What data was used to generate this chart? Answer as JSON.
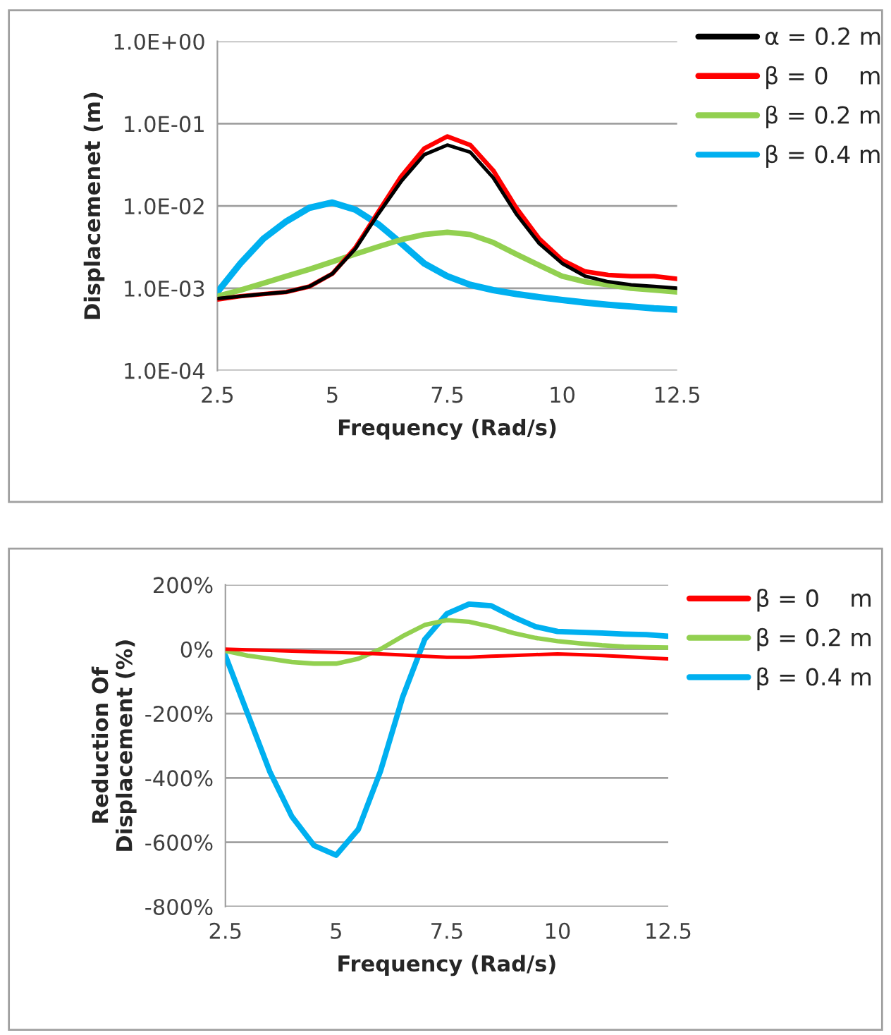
{
  "chart_data": [
    {
      "type": "line",
      "xlabel": "Frequency (Rad/s)",
      "ylabel": "Displacemenet (m)",
      "log": "y",
      "grid": "y",
      "legend": "right",
      "marker": "none",
      "line_style": "solid",
      "x": [
        2.5,
        3,
        3.5,
        4,
        4.5,
        5,
        5.5,
        6,
        6.5,
        7,
        7.5,
        8,
        8.5,
        9,
        9.5,
        10,
        10.5,
        11,
        11.5,
        12,
        12.5
      ],
      "xlim": [
        2.5,
        12.5
      ],
      "xticks": [
        2.5,
        5,
        7.5,
        10,
        12.5
      ],
      "ylim": [
        0.0001,
        1
      ],
      "yticks": [
        {
          "value": 0.0001,
          "label": "1.0E-04"
        },
        {
          "value": 0.001,
          "label": "1.0E-03"
        },
        {
          "value": 0.01,
          "label": "1.0E-02"
        },
        {
          "value": 0.1,
          "label": "1.0E-01"
        },
        {
          "value": 1,
          "label": "1.0E+00"
        }
      ],
      "series": [
        {
          "name": "α = 0.2 m",
          "color": "#000000",
          "values": [
            0.00075,
            0.0008,
            0.00085,
            0.0009,
            0.00105,
            0.0015,
            0.003,
            0.008,
            0.02,
            0.042,
            0.055,
            0.045,
            0.022,
            0.008,
            0.0035,
            0.002,
            0.0014,
            0.0012,
            0.0011,
            0.00105,
            0.001
          ]
        },
        {
          "name": "β = 0    m",
          "color": "#ff0000",
          "values": [
            0.00073,
            0.0008,
            0.00085,
            0.0009,
            0.00105,
            0.0015,
            0.0031,
            0.0085,
            0.023,
            0.05,
            0.07,
            0.055,
            0.027,
            0.0095,
            0.004,
            0.0022,
            0.0016,
            0.00145,
            0.0014,
            0.0014,
            0.0013
          ]
        },
        {
          "name": "β = 0.2 m",
          "color": "#92d050",
          "values": [
            0.0008,
            0.00095,
            0.00115,
            0.0014,
            0.0017,
            0.0021,
            0.0026,
            0.0032,
            0.0039,
            0.0045,
            0.0048,
            0.0045,
            0.0036,
            0.0026,
            0.0019,
            0.0014,
            0.0012,
            0.0011,
            0.001,
            0.00095,
            0.0009
          ]
        },
        {
          "name": "β = 0.4 m",
          "color": "#00b0f0",
          "values": [
            0.0009,
            0.002,
            0.004,
            0.0065,
            0.0095,
            0.011,
            0.009,
            0.006,
            0.0035,
            0.002,
            0.0014,
            0.0011,
            0.00095,
            0.00085,
            0.00078,
            0.00072,
            0.00067,
            0.00063,
            0.0006,
            0.00057,
            0.00055
          ]
        }
      ]
    },
    {
      "type": "line",
      "xlabel": "Frequency (Rad/s)",
      "ylabel": "Reduction Of\nDisplacement (%)",
      "grid": "y",
      "legend": "right",
      "marker": "none",
      "line_style": "solid",
      "x": [
        2.5,
        3,
        3.5,
        4,
        4.5,
        5,
        5.5,
        6,
        6.5,
        7,
        7.5,
        8,
        8.5,
        9,
        9.5,
        10,
        10.5,
        11,
        11.5,
        12,
        12.5
      ],
      "xlim": [
        2.5,
        12.5
      ],
      "xticks": [
        2.5,
        5,
        7.5,
        10,
        12.5
      ],
      "ylim": [
        -800,
        200
      ],
      "yticks": [
        {
          "value": -800,
          "label": "-800%"
        },
        {
          "value": -600,
          "label": "-600%"
        },
        {
          "value": -400,
          "label": "-400%"
        },
        {
          "value": -200,
          "label": "-200%"
        },
        {
          "value": 0,
          "label": "0%"
        },
        {
          "value": 200,
          "label": "200%"
        }
      ],
      "series": [
        {
          "name": "β = 0    m",
          "color": "#ff0000",
          "values": [
            0,
            -2,
            -4,
            -6,
            -8,
            -10,
            -12,
            -15,
            -18,
            -22,
            -25,
            -25,
            -22,
            -20,
            -17,
            -15,
            -17,
            -20,
            -23,
            -27,
            -30
          ]
        },
        {
          "name": "β = 0.2 m",
          "color": "#92d050",
          "values": [
            -5,
            -20,
            -30,
            -40,
            -45,
            -45,
            -30,
            0,
            40,
            75,
            90,
            85,
            70,
            50,
            35,
            25,
            18,
            12,
            8,
            6,
            5
          ]
        },
        {
          "name": "β = 0.4 m",
          "color": "#00b0f0",
          "values": [
            -20,
            -200,
            -380,
            -520,
            -610,
            -640,
            -560,
            -380,
            -150,
            30,
            110,
            140,
            135,
            100,
            70,
            55,
            52,
            50,
            47,
            45,
            40
          ]
        }
      ]
    }
  ]
}
